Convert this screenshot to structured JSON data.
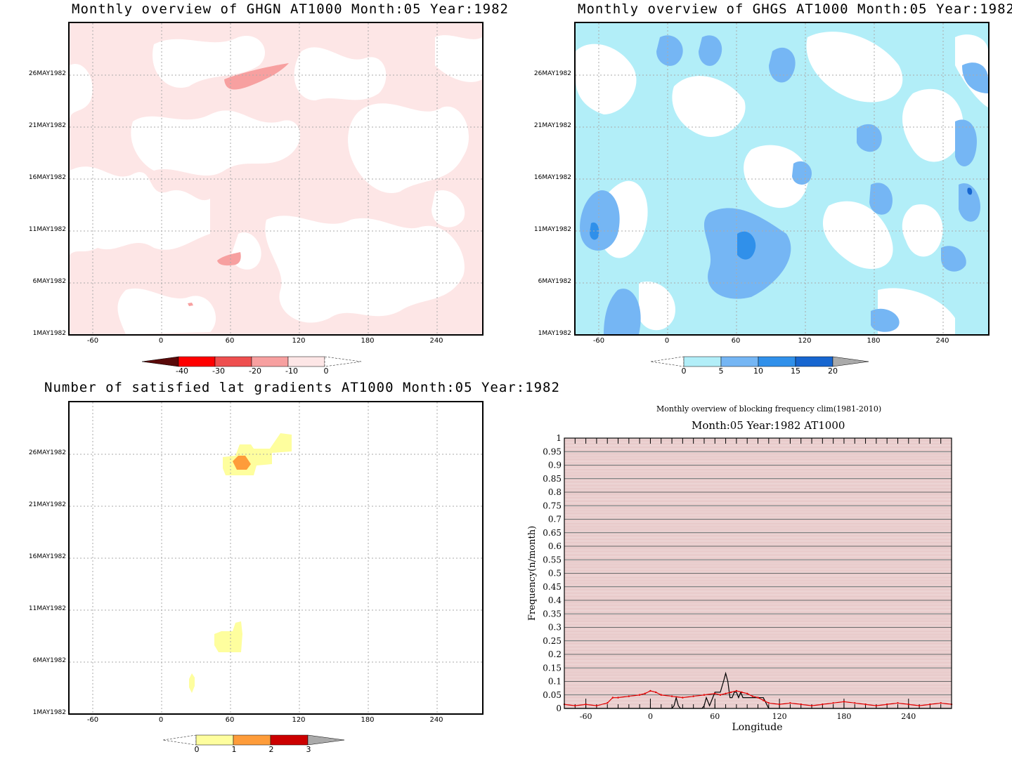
{
  "panels": {
    "ghgn": {
      "title": "Monthly overview of GHGN AT1000 Month:05 Year:1982",
      "ylabels": [
        "26MAY1982",
        "21MAY1982",
        "16MAY1982",
        "11MAY1982",
        "6MAY1982",
        "1MAY1982"
      ],
      "xlabels": [
        "-60",
        "0",
        "60",
        "120",
        "180",
        "240"
      ],
      "colorbar_labels": [
        "-40",
        "-30",
        "-20",
        "-10",
        "0"
      ],
      "colors": [
        "#5a0a0a",
        "#ff0000",
        "#ee4f4f",
        "#f7a0a0",
        "#fde6e6"
      ]
    },
    "ghgs": {
      "title": "Monthly overview of GHGS AT1000 Month:05 Year:1982",
      "ylabels": [
        "26MAY1982",
        "21MAY1982",
        "16MAY1982",
        "11MAY1982",
        "6MAY1982",
        "1MAY1982"
      ],
      "xlabels": [
        "-60",
        "0",
        "60",
        "120",
        "180",
        "240"
      ],
      "colorbar_labels": [
        "0",
        "5",
        "10",
        "15",
        "20"
      ],
      "colors": [
        "#b2eef8",
        "#75b6f4",
        "#3090ea",
        "#1766d0",
        "#aaaaaa"
      ]
    },
    "grad": {
      "title": "Number of satisfied lat gradients AT1000 Month:05 Year:1982",
      "ylabels": [
        "26MAY1982",
        "21MAY1982",
        "16MAY1982",
        "11MAY1982",
        "6MAY1982",
        "1MAY1982"
      ],
      "xlabels": [
        "-60",
        "0",
        "60",
        "120",
        "180",
        "240"
      ],
      "colorbar_labels": [
        "0",
        "1",
        "2",
        "3"
      ],
      "colors": [
        "#fefe9e",
        "#fe9c3a",
        "#cc0000",
        "#aaaaaa"
      ]
    },
    "freq": {
      "suptitle": "Monthly overview of blocking frequency clim(1981-2010)",
      "title": "Month:05 Year:1982  AT1000"
    }
  },
  "chart_data": [
    {
      "type": "heatmap",
      "title": "Monthly overview of GHGN AT1000 Month:05 Year:1982",
      "x_ticks": [
        -60,
        0,
        60,
        120,
        180,
        240
      ],
      "y_ticks": [
        "1MAY1982",
        "6MAY1982",
        "11MAY1982",
        "16MAY1982",
        "21MAY1982",
        "26MAY1982"
      ],
      "levels": [
        -40,
        -30,
        -20,
        -10,
        0
      ]
    },
    {
      "type": "heatmap",
      "title": "Monthly overview of GHGS AT1000 Month:05 Year:1982",
      "x_ticks": [
        -60,
        0,
        60,
        120,
        180,
        240
      ],
      "y_ticks": [
        "1MAY1982",
        "6MAY1982",
        "11MAY1982",
        "16MAY1982",
        "21MAY1982",
        "26MAY1982"
      ],
      "levels": [
        0,
        5,
        10,
        15,
        20
      ]
    },
    {
      "type": "heatmap",
      "title": "Number of satisfied lat gradients AT1000 Month:05 Year:1982",
      "x_ticks": [
        -60,
        0,
        60,
        120,
        180,
        240
      ],
      "y_ticks": [
        "1MAY1982",
        "6MAY1982",
        "11MAY1982",
        "16MAY1982",
        "21MAY1982",
        "26MAY1982"
      ],
      "levels": [
        0,
        1,
        2,
        3
      ]
    },
    {
      "type": "line",
      "title": "Month:05 Year:1982  AT1000",
      "xlabel": "Longitude",
      "ylabel": "Frequency(n/month)",
      "xlim": [
        -80,
        280
      ],
      "ylim": [
        0,
        1
      ],
      "x_ticks": [
        -60,
        0,
        60,
        120,
        180,
        240
      ],
      "y_ticks": [
        0,
        0.05,
        0.1,
        0.15,
        0.2,
        0.25,
        0.3,
        0.35,
        0.4,
        0.45,
        0.5,
        0.55,
        0.6,
        0.65,
        0.7,
        0.75,
        0.8,
        0.85,
        0.9,
        0.95,
        1
      ],
      "y_tick_labels": [
        "0",
        "0.05",
        "0.1",
        "0.15",
        "0.2",
        "0.25",
        "0.3",
        "0.35",
        "0.4",
        "0.45",
        "0.5",
        "0.55",
        "0.6",
        "0.65",
        "0.7",
        "0.75",
        "0.8",
        "0.85",
        "0.9",
        "0.95",
        "1"
      ],
      "series": [
        {
          "color": "#000000",
          "x": [
            -80,
            20,
            22,
            24,
            26,
            28,
            30,
            48,
            50,
            52,
            55,
            58,
            60,
            62,
            65,
            68,
            70,
            72,
            74,
            76,
            78,
            80,
            82,
            84,
            86,
            88,
            90,
            95,
            100,
            105,
            110,
            280
          ],
          "y": [
            0,
            0,
            0.01,
            0.04,
            0.01,
            0,
            0,
            0,
            0.01,
            0.04,
            0.01,
            0.04,
            0.06,
            0.06,
            0.06,
            0.1,
            0.13,
            0.1,
            0.04,
            0.04,
            0.06,
            0.06,
            0.04,
            0.06,
            0.04,
            0.04,
            0.04,
            0.04,
            0.04,
            0.04,
            0,
            0
          ]
        },
        {
          "color": "#e00000",
          "x": [
            -80,
            -70,
            -60,
            -50,
            -40,
            -35,
            -30,
            -20,
            -10,
            -5,
            0,
            5,
            10,
            20,
            30,
            40,
            50,
            60,
            65,
            70,
            75,
            80,
            85,
            90,
            95,
            100,
            105,
            110,
            120,
            130,
            140,
            150,
            160,
            170,
            180,
            190,
            200,
            210,
            220,
            230,
            240,
            250,
            260,
            270,
            280
          ],
          "y": [
            0.015,
            0.01,
            0.015,
            0.01,
            0.02,
            0.04,
            0.04,
            0.045,
            0.05,
            0.055,
            0.065,
            0.06,
            0.05,
            0.045,
            0.04,
            0.045,
            0.05,
            0.055,
            0.05,
            0.055,
            0.06,
            0.065,
            0.06,
            0.055,
            0.045,
            0.04,
            0.03,
            0.02,
            0.015,
            0.02,
            0.015,
            0.01,
            0.015,
            0.02,
            0.025,
            0.02,
            0.015,
            0.01,
            0.015,
            0.02,
            0.015,
            0.01,
            0.015,
            0.02,
            0.015
          ]
        }
      ]
    }
  ]
}
